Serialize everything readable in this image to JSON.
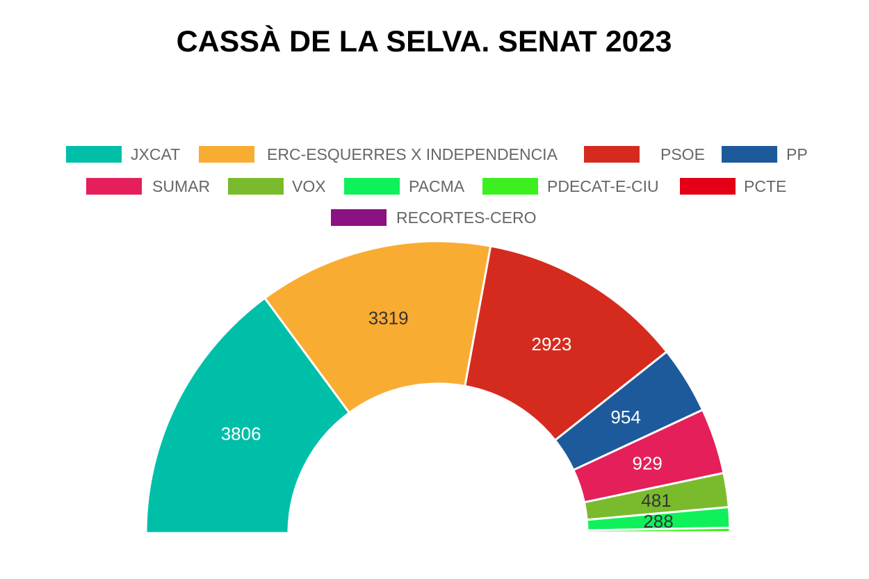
{
  "chart_data": {
    "type": "pie",
    "variant": "half-doughnut",
    "title": "CASSÀ DE LA SELVA. SENAT 2023",
    "legend_position": "top",
    "series": [
      {
        "name": "JXCAT",
        "value": 3806,
        "color": "#00bfa9"
      },
      {
        "name": "ERC-ESQUERRES X INDEPENDENCIA",
        "value": 3319,
        "color": "#f9ac32"
      },
      {
        "name": "PSOE",
        "value": 2923,
        "color": "#d52b1e"
      },
      {
        "name": "PP",
        "value": 954,
        "color": "#1d5a9c"
      },
      {
        "name": "SUMAR",
        "value": 929,
        "color": "#e41f5a"
      },
      {
        "name": "VOX",
        "value": 481,
        "color": "#7abb2e"
      },
      {
        "name": "PACMA",
        "value": 288,
        "color": "#0ef15a"
      },
      {
        "name": "PDECAT-E-CIU",
        "value": 60,
        "color": "#3cf01f"
      },
      {
        "name": "PCTE",
        "value": 10,
        "color": "#e30016"
      },
      {
        "name": "RECORTES-CERO",
        "value": 5,
        "color": "#8a1282"
      }
    ]
  }
}
